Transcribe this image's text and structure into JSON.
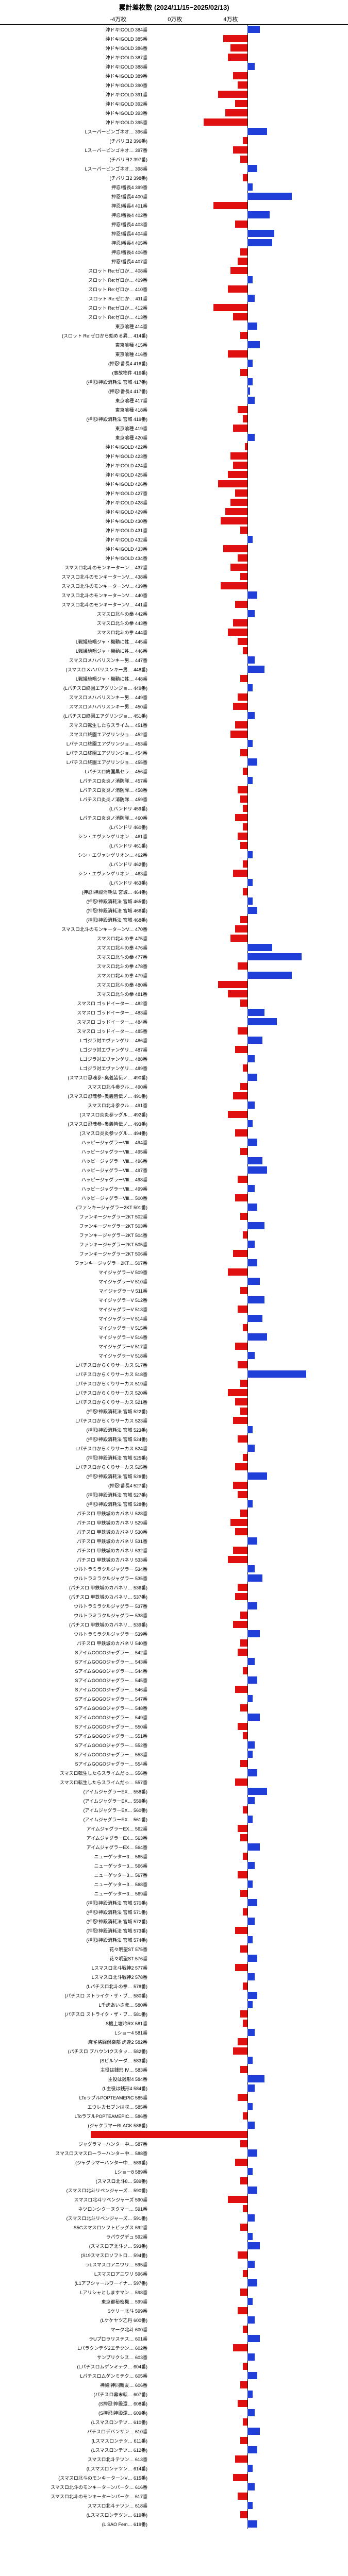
{
  "title": "累計差枚数 (2024/11/15~2025/02/13)",
  "axis_labels": [
    "-4万枚",
    "0万枚",
    "4万枚"
  ],
  "colors": {
    "positive": "#1f3fd8",
    "negative": "#e01010",
    "bg": "#ffffff",
    "axis": "#000000",
    "grid": "#cccccc"
  },
  "scale": {
    "min": -40000,
    "max": 40000,
    "pixels_per_unit": 0.00475
  },
  "rows": [
    {
      "label": "沖ドキ!GOLD 384番",
      "value": 5000
    },
    {
      "label": "沖ドキ!GOLD 385番",
      "value": -10000
    },
    {
      "label": "沖ドキ!GOLD 386番",
      "value": -7000
    },
    {
      "label": "沖ドキ!GOLD 387番",
      "value": -8000
    },
    {
      "label": "沖ドキ!GOLD 388番",
      "value": 3000
    },
    {
      "label": "沖ドキ!GOLD 389番",
      "value": -6000
    },
    {
      "label": "沖ドキ!GOLD 390番",
      "value": -4000
    },
    {
      "label": "沖ドキ!GOLD 391番",
      "value": -12000
    },
    {
      "label": "沖ドキ!GOLD 392番",
      "value": -5000
    },
    {
      "label": "沖ドキ!GOLD 393番",
      "value": -9000
    },
    {
      "label": "沖ドキ!GOLD 395番",
      "value": -18000
    },
    {
      "label": "Lスーパービンゴネオ… 396番",
      "value": 8000
    },
    {
      "label": "(チバリヨ2 396番)",
      "value": -2000
    },
    {
      "label": "Lスーパービンゴネオ… 397番",
      "value": -6000
    },
    {
      "label": "(チバリヨ2 397番)",
      "value": -3000
    },
    {
      "label": "Lスーパービンゴネオ… 398番",
      "value": 4000
    },
    {
      "label": "(チバリヨ2 398番)",
      "value": -2000
    },
    {
      "label": "押忍!番長4 399番",
      "value": 2000
    },
    {
      "label": "押忍!番長4 400番",
      "value": 18000
    },
    {
      "label": "押忍!番長4 401番",
      "value": -14000
    },
    {
      "label": "押忍!番長4 402番",
      "value": 9000
    },
    {
      "label": "押忍!番長4 403番",
      "value": -5000
    },
    {
      "label": "押忍!番長4 404番",
      "value": 11000
    },
    {
      "label": "押忍!番長4 405番",
      "value": 10000
    },
    {
      "label": "押忍!番長4 406番",
      "value": -3000
    },
    {
      "label": "押忍!番長4 407番",
      "value": -4000
    },
    {
      "label": "スロット Re:ゼロか… 408番",
      "value": -7000
    },
    {
      "label": "スロット Re:ゼロか… 409番",
      "value": 2000
    },
    {
      "label": "スロット Re:ゼロか… 410番",
      "value": -8000
    },
    {
      "label": "スロット Re:ゼロか… 411番",
      "value": 3000
    },
    {
      "label": "スロット Re:ゼロか… 412番",
      "value": -14000
    },
    {
      "label": "スロット Re:ゼロか… 413番",
      "value": -6000
    },
    {
      "label": "東京喰種 414番",
      "value": 4000
    },
    {
      "label": "(スロット Re:ゼロから始める異… 414番)",
      "value": -3000
    },
    {
      "label": "東京喰種 415番",
      "value": 5000
    },
    {
      "label": "東京喰種 416番",
      "value": -8000
    },
    {
      "label": "(押忍!番長4 416番)",
      "value": 2000
    },
    {
      "label": "(事故物件 416番)",
      "value": -3000
    },
    {
      "label": "(押忍!神殿消耗法 宮城 417番)",
      "value": 2000
    },
    {
      "label": "(押忍!番長4 417番)",
      "value": 1000
    },
    {
      "label": "東京喰種 417番",
      "value": 3000
    },
    {
      "label": "東京喰種 418番",
      "value": -4000
    },
    {
      "label": "(押忍!神殿消耗法 宮城 419番)",
      "value": -2000
    },
    {
      "label": "東京喰種 419番",
      "value": -6000
    },
    {
      "label": "東京喰種 420番",
      "value": 3000
    },
    {
      "label": "沖ドキ!GOLD 422番",
      "value": -1000
    },
    {
      "label": "沖ドキ!GOLD 423番",
      "value": -7000
    },
    {
      "label": "沖ドキ!GOLD 424番",
      "value": -6000
    },
    {
      "label": "沖ドキ!GOLD 425番",
      "value": -8000
    },
    {
      "label": "沖ドキ!GOLD 426番",
      "value": -12000
    },
    {
      "label": "沖ドキ!GOLD 427番",
      "value": -5000
    },
    {
      "label": "沖ドキ!GOLD 428番",
      "value": -7000
    },
    {
      "label": "沖ドキ!GOLD 429番",
      "value": -9000
    },
    {
      "label": "沖ドキ!GOLD 430番",
      "value": -11000
    },
    {
      "label": "沖ドキ!GOLD 431番",
      "value": -3000
    },
    {
      "label": "沖ドキ!GOLD 432番",
      "value": 2000
    },
    {
      "label": "沖ドキ!GOLD 433番",
      "value": -10000
    },
    {
      "label": "沖ドキ!GOLD 434番",
      "value": -4000
    },
    {
      "label": "スマスロ北斗のモンキーターン… 437番",
      "value": -7000
    },
    {
      "label": "スマスロ北斗のモンキーターンV… 438番",
      "value": -3000
    },
    {
      "label": "スマスロ北斗のモンキーターンV… 439番",
      "value": -11000
    },
    {
      "label": "スマスロ北斗のモンキーターンV… 440番",
      "value": 4000
    },
    {
      "label": "スマスロ北斗のモンキーターンV… 441番",
      "value": -5000
    },
    {
      "label": "スマスロ北斗の拳 442番",
      "value": 3000
    },
    {
      "label": "スマスロ北斗の拳 443番",
      "value": -6000
    },
    {
      "label": "スマスロ北斗の拳 444番",
      "value": -8000
    },
    {
      "label": "L戦姫絶唱ジャ・機動に牲… 445番",
      "value": -4000
    },
    {
      "label": "L戦姫絶唱ジャ・機動に牲… 446番",
      "value": -2000
    },
    {
      "label": "スマスロメハバリスンキー男… 447番",
      "value": 3000
    },
    {
      "label": "(スマスロメハバリスンキー男… 448番)",
      "value": 7000
    },
    {
      "label": "L戦姫絶唱ジャ・機動に牲… 448番",
      "value": -3000
    },
    {
      "label": "(Lパチスロ終園エアグリンジョ… 449番)",
      "value": 2000
    },
    {
      "label": "スマスロメハバリスンキー男… 449番",
      "value": -4000
    },
    {
      "label": "スマスロメハバリスンキー男… 450番",
      "value": -6000
    },
    {
      "label": "(Lパチスロ終園エアグリンジョ… 451番)",
      "value": 3000
    },
    {
      "label": "スマスロ転生したらスライム… 451番",
      "value": -5000
    },
    {
      "label": "スマスロ終園エアグリンジョ… 452番",
      "value": -7000
    },
    {
      "label": "Lパチスロ終園エアグリンジョ… 453番",
      "value": 2000
    },
    {
      "label": "Lパチスロ終園エアグリンジョ… 454番",
      "value": -3000
    },
    {
      "label": "Lパチスロ終園エアグリンジョ… 455番",
      "value": 4000
    },
    {
      "label": "Lパチスロ終国黒セラ… 456番",
      "value": -2000
    },
    {
      "label": "Lパチスロ炎炎ノ消防隊… 457番",
      "value": 2000
    },
    {
      "label": "Lパチスロ炎炎ノ消防隊… 458番",
      "value": -4000
    },
    {
      "label": "Lパチスロ炎炎ノ消防隊… 459番",
      "value": -3000
    },
    {
      "label": "(Lバンドリ 459番)",
      "value": -2000
    },
    {
      "label": "Lパチスロ炎炎ノ消防隊… 460番",
      "value": -5000
    },
    {
      "label": "(Lバンドリ 460番)",
      "value": -2000
    },
    {
      "label": "シン・エヴァンゲリオン… 461番",
      "value": -4000
    },
    {
      "label": "(Lバンドリ 461番)",
      "value": -3000
    },
    {
      "label": "シン・エヴァンゲリオン… 462番",
      "value": 2000
    },
    {
      "label": "(Lバンドリ 462番)",
      "value": -2000
    },
    {
      "label": "シン・エヴァンゲリオン… 463番",
      "value": -6000
    },
    {
      "label": "(Lバンドリ 463番)",
      "value": 2000
    },
    {
      "label": "(押忍!神殿消耗法 宮城… 464番)",
      "value": -2000
    },
    {
      "label": "(押忍!神殿消耗法 宮城 465番)",
      "value": 2000
    },
    {
      "label": "(押忍!神殿消耗法 宮城 466番)",
      "value": 4000
    },
    {
      "label": "(押忍!神殿消耗法 宮城 468番)",
      "value": -3000
    },
    {
      "label": "スマスロ北斗のモンキーターンV… 470番",
      "value": -5000
    },
    {
      "label": "スマスロ北斗の拳 475番",
      "value": -7000
    },
    {
      "label": "スマスロ北斗の拳 476番",
      "value": 10000
    },
    {
      "label": "スマスロ北斗の拳 477番",
      "value": 22000
    },
    {
      "label": "スマスロ北斗の拳 478番",
      "value": -4000
    },
    {
      "label": "スマスロ北斗の拳 479番",
      "value": 18000
    },
    {
      "label": "スマスロ北斗の拳 480番",
      "value": -12000
    },
    {
      "label": "スマスロ北斗の拳 481番",
      "value": -8000
    },
    {
      "label": "スマスロ ゴッドイーター… 482番",
      "value": -3000
    },
    {
      "label": "スマスロ ゴッドイーター… 483番",
      "value": 7000
    },
    {
      "label": "スマスロ ゴッドイーター… 484番",
      "value": 12000
    },
    {
      "label": "スマスロ ゴッドイーター… 485番",
      "value": -4000
    },
    {
      "label": "Lゴジラ対エヴァンゲリ… 486番",
      "value": 6000
    },
    {
      "label": "Lゴジラ対エヴァンゲリ… 487番",
      "value": -5000
    },
    {
      "label": "Lゴジラ対エヴァンゲリ… 488番",
      "value": 3000
    },
    {
      "label": "Lゴジラ対エヴァンゲリ… 489番",
      "value": -2000
    },
    {
      "label": "(スマスロ忍魂参~奥義皆伝ノ… 490番)",
      "value": 4000
    },
    {
      "label": "スマスロ北斗参クル… 490番",
      "value": -3000
    },
    {
      "label": "(スマスロ忍魂参~奥義皆伝ノ… 491番)",
      "value": -6000
    },
    {
      "label": "スマスロ北斗参クル… 491番",
      "value": 3000
    },
    {
      "label": "(スマスロ炎炎参ッグル… 492番)",
      "value": -8000
    },
    {
      "label": "(スマスロ忍魂参~奥義皆伝ノ… 493番)",
      "value": 2000
    },
    {
      "label": "(スマスロ炎炎参ッグル… 494番)",
      "value": -5000
    },
    {
      "label": "ハッピージャグラーVⅢ… 494番",
      "value": 4000
    },
    {
      "label": "ハッピージャグラーVⅢ… 495番",
      "value": -3000
    },
    {
      "label": "ハッピージャグラーVⅢ… 496番",
      "value": 6000
    },
    {
      "label": "ハッピージャグラーVⅢ… 497番",
      "value": 8000
    },
    {
      "label": "ハッピージャグラーVⅢ… 498番",
      "value": -4000
    },
    {
      "label": "ハッピージャグラーVⅢ… 499番",
      "value": 3000
    },
    {
      "label": "ハッピージャグラーVⅢ… 500番",
      "value": -5000
    },
    {
      "label": "(ファンキージャグラー2KT 501番)",
      "value": 4000
    },
    {
      "label": "ファンキージャグラー2KT 502番",
      "value": -3000
    },
    {
      "label": "ファンキージャグラー2KT 503番",
      "value": 7000
    },
    {
      "label": "ファンキージャグラー2KT 504番",
      "value": -2000
    },
    {
      "label": "ファンキージャグラー2KT 505番",
      "value": 3000
    },
    {
      "label": "ファンキージャグラー2KT 506番",
      "value": -6000
    },
    {
      "label": "ファンキージャグラー2KT… 507番",
      "value": 4000
    },
    {
      "label": "マイジャグラーV 509番",
      "value": -8000
    },
    {
      "label": "マイジャグラーV 510番",
      "value": 5000
    },
    {
      "label": "マイジャグラーV 511番",
      "value": -3000
    },
    {
      "label": "マイジャグラーV 512番",
      "value": 7000
    },
    {
      "label": "マイジャグラーV 513番",
      "value": -4000
    },
    {
      "label": "マイジャグラーV 514番",
      "value": 6000
    },
    {
      "label": "マイジャグラーV 515番",
      "value": -2000
    },
    {
      "label": "マイジャグラーV 516番",
      "value": 8000
    },
    {
      "label": "マイジャグラーV 517番",
      "value": -5000
    },
    {
      "label": "マイジャグラーV 518番",
      "value": 3000
    },
    {
      "label": "Lパチスロからくりサーカス 517番",
      "value": -4000
    },
    {
      "label": "Lパチスロからくりサーカス 518番",
      "value": 24000
    },
    {
      "label": "Lパチスロからくりサーカス 519番",
      "value": -3000
    },
    {
      "label": "Lパチスロからくりサーカス 520番",
      "value": -8000
    },
    {
      "label": "Lパチスロからくりサーカス 521番",
      "value": -5000
    },
    {
      "label": "(押忍!神殿消耗法 宮城 522番)",
      "value": -3000
    },
    {
      "label": "Lパチスロからくりサーカス 523番",
      "value": -6000
    },
    {
      "label": "(押忍!神殿消耗法 宮城 523番)",
      "value": 2000
    },
    {
      "label": "(押忍!神殿消耗法 宮城 524番)",
      "value": -4000
    },
    {
      "label": "Lパチスロからくりサーカス 524番",
      "value": 3000
    },
    {
      "label": "(押忍!神殿消耗法 宮城 525番)",
      "value": -2000
    },
    {
      "label": "Lパチスロからくりサーカス 525番",
      "value": -5000
    },
    {
      "label": "(押忍!神殿消耗法 宮城 526番)",
      "value": 8000
    },
    {
      "label": "(押忍!番長4 527番)",
      "value": -6000
    },
    {
      "label": "(押忍!神殿消耗法 宮城 527番)",
      "value": -4000
    },
    {
      "label": "(押忍!神殿消耗法 宮城 528番)",
      "value": 2000
    },
    {
      "label": "パチスロ 甲鉄城のカバネリ 528番",
      "value": -3000
    },
    {
      "label": "パチスロ 甲鉄城のカバネリ 529番",
      "value": -7000
    },
    {
      "label": "パチスロ 甲鉄城のカバネリ 530番",
      "value": -5000
    },
    {
      "label": "パチスロ 甲鉄城のカバネリ 531番",
      "value": 4000
    },
    {
      "label": "パチスロ 甲鉄城のカバネリ 532番",
      "value": -6000
    },
    {
      "label": "パチスロ 甲鉄城のカバネリ 533番",
      "value": -8000
    },
    {
      "label": "ウルトラミラクルジャグラー 534番",
      "value": 3000
    },
    {
      "label": "ウルトラミラクルジャグラー 535番",
      "value": 6000
    },
    {
      "label": "(パチスロ 甲鉄城のカバネリ… 536番)",
      "value": -4000
    },
    {
      "label": "(パチスロ 甲鉄城のカバネリ… 537番)",
      "value": -5000
    },
    {
      "label": "ウルトラミラクルジャグラー 537番",
      "value": 4000
    },
    {
      "label": "ウルトラミラクルジャグラー 538番",
      "value": -3000
    },
    {
      "label": "(パチスロ 甲鉄城のカバネリ… 539番)",
      "value": -6000
    },
    {
      "label": "ウルトラミラクルジャグラー 539番",
      "value": 5000
    },
    {
      "label": "パチスロ 甲鉄城のカバネリ 540番",
      "value": -3000
    },
    {
      "label": "SアイムGOGOジャグラー… 542番",
      "value": -4000
    },
    {
      "label": "SアイムGOGOジャグラー… 543番",
      "value": 3000
    },
    {
      "label": "SアイムGOGOジャグラー… 544番",
      "value": -2000
    },
    {
      "label": "SアイムGOGOジャグラー… 545番",
      "value": 4000
    },
    {
      "label": "SアイムGOGOジャグラー… 546番",
      "value": -5000
    },
    {
      "label": "SアイムGOGOジャグラー… 547番",
      "value": 2000
    },
    {
      "label": "SアイムGOGOジャグラー… 548番",
      "value": -3000
    },
    {
      "label": "SアイムGOGOジャグラー… 549番",
      "value": 5000
    },
    {
      "label": "SアイムGOGOジャグラー… 550番",
      "value": -4000
    },
    {
      "label": "SアイムGOGOジャグラー… 551番",
      "value": -2000
    },
    {
      "label": "SアイムGOGOジャグラー… 552番",
      "value": 3000
    },
    {
      "label": "SアイムGOGOジャグラー… 553番",
      "value": 2000
    },
    {
      "label": "SアイムGOGOジャグラー… 554番",
      "value": -3000
    },
    {
      "label": "スマスロ転生したらスライムだっ… 556番",
      "value": 4000
    },
    {
      "label": "スマスロ転生したらスライムだっ… 557番",
      "value": -5000
    },
    {
      "label": "(アイムジャグラーEX… 558番)",
      "value": 8000
    },
    {
      "label": "(アイムジャグラーEX… 559番)",
      "value": 3000
    },
    {
      "label": "(アイムジャグラーEX… 560番)",
      "value": -2000
    },
    {
      "label": "(アイムジャグラーEX… 561番)",
      "value": 2000
    },
    {
      "label": "アイムジャグラーEX… 562番",
      "value": -4000
    },
    {
      "label": "アイムジャグラーEX… 563番",
      "value": -3000
    },
    {
      "label": "アイムジャグラーEX… 564番",
      "value": 5000
    },
    {
      "label": "ニューゲッター3… 565番",
      "value": -2000
    },
    {
      "label": "ニューゲッター3… 566番",
      "value": 3000
    },
    {
      "label": "ニューゲッター3… 567番",
      "value": -4000
    },
    {
      "label": "ニューゲッター3… 568番",
      "value": 2000
    },
    {
      "label": "ニューゲッター3… 569番",
      "value": -3000
    },
    {
      "label": "(押忍!神殿消耗法 宮城 570番)",
      "value": 4000
    },
    {
      "label": "(押忍!神殿消耗法 宮城 571番)",
      "value": -2000
    },
    {
      "label": "(押忍!神殿消耗法 宮城 572番)",
      "value": 3000
    },
    {
      "label": "(押忍!神殿消耗法 宮城 573番)",
      "value": -5000
    },
    {
      "label": "(押忍!神殿消耗法 宮城 574番)",
      "value": 2000
    },
    {
      "label": "花々明聖ST 575番",
      "value": -3000
    },
    {
      "label": "花々明聖ST 576番",
      "value": 4000
    },
    {
      "label": "Lスマスロ北斗戦神2 577番",
      "value": -5000
    },
    {
      "label": "Lスマスロ北斗戦神2 578番",
      "value": 3000
    },
    {
      "label": "(Lパチスロ北斗の拳… 578番)",
      "value": -2000
    },
    {
      "label": "(パチスロ ストライク・ザ・ブ… 580番)",
      "value": 4000
    },
    {
      "label": "L千虎あいさ虎… 580番",
      "value": 2000
    },
    {
      "label": "(パチスロ ストライク・ザ・ブ… 581番)",
      "value": -3000
    },
    {
      "label": "S機上壇吟RX 581番",
      "value": -2000
    },
    {
      "label": "Lショー4 581番",
      "value": 3000
    },
    {
      "label": "麻雀格闘倶楽部 虎逢2 582番",
      "value": -4000
    },
    {
      "label": "(パチスロ ブハウンIクスタッ… 582番)",
      "value": -6000
    },
    {
      "label": "(Sビルソーダ… 583番)",
      "value": 2000
    },
    {
      "label": "主役は銭形 Ⅳ… 583番",
      "value": -3000
    },
    {
      "label": "主役は銭形4 584番",
      "value": 7000
    },
    {
      "label": "(L主役は銭形4 584番)",
      "value": 3000
    },
    {
      "label": "LToラブルPOPTEAMEPIC 585番",
      "value": -4000
    },
    {
      "label": "エウレカセブンは収… 585番",
      "value": 2000
    },
    {
      "label": "LToラブルPOPTEAMEPIC… 586番",
      "value": -2000
    },
    {
      "label": "(ジャクラマーBLACK 586番)",
      "value": 3000
    },
    {
      "label": "(神殿!神殿還KWK 587番)",
      "value": -64000
    },
    {
      "label": "ジャグラマーハンター中… 587番",
      "value": -3000
    },
    {
      "label": "スマスロスマスローラーハンター中… 588番",
      "value": 4000
    },
    {
      "label": "(ジャグラマーハンター中… 589番)",
      "value": -5000
    },
    {
      "label": "Lショー8 589番",
      "value": 2000
    },
    {
      "label": "(スマスロ北斗8… 589番)",
      "value": -3000
    },
    {
      "label": "(スマスロ北斗リベンジャーズ… 590番)",
      "value": 4000
    },
    {
      "label": "スマスロ北斗リベンジャーズ 590番",
      "value": -8000
    },
    {
      "label": "ネツロンシクーヌクマー… 591番",
      "value": -2000
    },
    {
      "label": "(スマスロ北斗リベンジャーズ… 591番)",
      "value": 3000
    },
    {
      "label": "S5Gスマスロソフトビッグス 592番",
      "value": -3000
    },
    {
      "label": "ラパウグデュ 592番",
      "value": 2000
    },
    {
      "label": "(スマスロア北斗ソ… 593番)",
      "value": 5000
    },
    {
      "label": "(S19スマスロソフトロ… 594番)",
      "value": -4000
    },
    {
      "label": "ラLスマスロアニワリ… 595番",
      "value": 3000
    },
    {
      "label": "Lスマスロアニワリ 596番",
      "value": -2000
    },
    {
      "label": "(L1アブシャールワーイナ… 597番)",
      "value": 4000
    },
    {
      "label": "Lアリシャとしますマン… 598番",
      "value": -3000
    },
    {
      "label": "東京都秘密機… 599番",
      "value": 2000
    },
    {
      "label": "Sケリー北斗 599番",
      "value": -4000
    },
    {
      "label": "(Lケケヤツ乙丹 600番)",
      "value": 3000
    },
    {
      "label": "マーク北斗 600番",
      "value": -2000
    },
    {
      "label": "ラUプロラリステス… 601番",
      "value": 5000
    },
    {
      "label": "Lパラクンテツ2エテクン… 602番",
      "value": -6000
    },
    {
      "label": "サンプリクシス… 603番",
      "value": 3000
    },
    {
      "label": "(Lパチスロムゲンミテク… 604番)",
      "value": -2000
    },
    {
      "label": "Lパチスロムゲンミテク… 605番",
      "value": 4000
    },
    {
      "label": "神殿!神同新友… 606番",
      "value": -3000
    },
    {
      "label": "(パチスロ幕末転… 607番)",
      "value": 2000
    },
    {
      "label": "(S押忍!神殿還… 608番)",
      "value": -4000
    },
    {
      "label": "(S押忍!神殿還… 609番)",
      "value": 3000
    },
    {
      "label": "(Lスマスロンテツ… 610番)",
      "value": -2000
    },
    {
      "label": "パチスロデバンザン… 610番",
      "value": 5000
    },
    {
      "label": "(Lスマスロンテツ… 611番)",
      "value": -3000
    },
    {
      "label": "(Lスマスロンテツ… 612番)",
      "value": 4000
    },
    {
      "label": "スマスロ北斗テツン… 613番",
      "value": -5000
    },
    {
      "label": "(Lスマスロンテツン… 614番)",
      "value": 2000
    },
    {
      "label": "(スマスロ北斗のモンキーターンV… 615番)",
      "value": -6000
    },
    {
      "label": "スマスロ北斗のモンキーターンパーク… 616番",
      "value": 3000
    },
    {
      "label": "スマスロ北斗のモンキーターンパーク… 617番",
      "value": -4000
    },
    {
      "label": "スマスロ北斗テツン… 618番",
      "value": 2000
    },
    {
      "label": "(Lスマスロンテツン… 619番)",
      "value": -3000
    },
    {
      "label": "(L SAO Fem… 619番)",
      "value": 4000
    }
  ]
}
